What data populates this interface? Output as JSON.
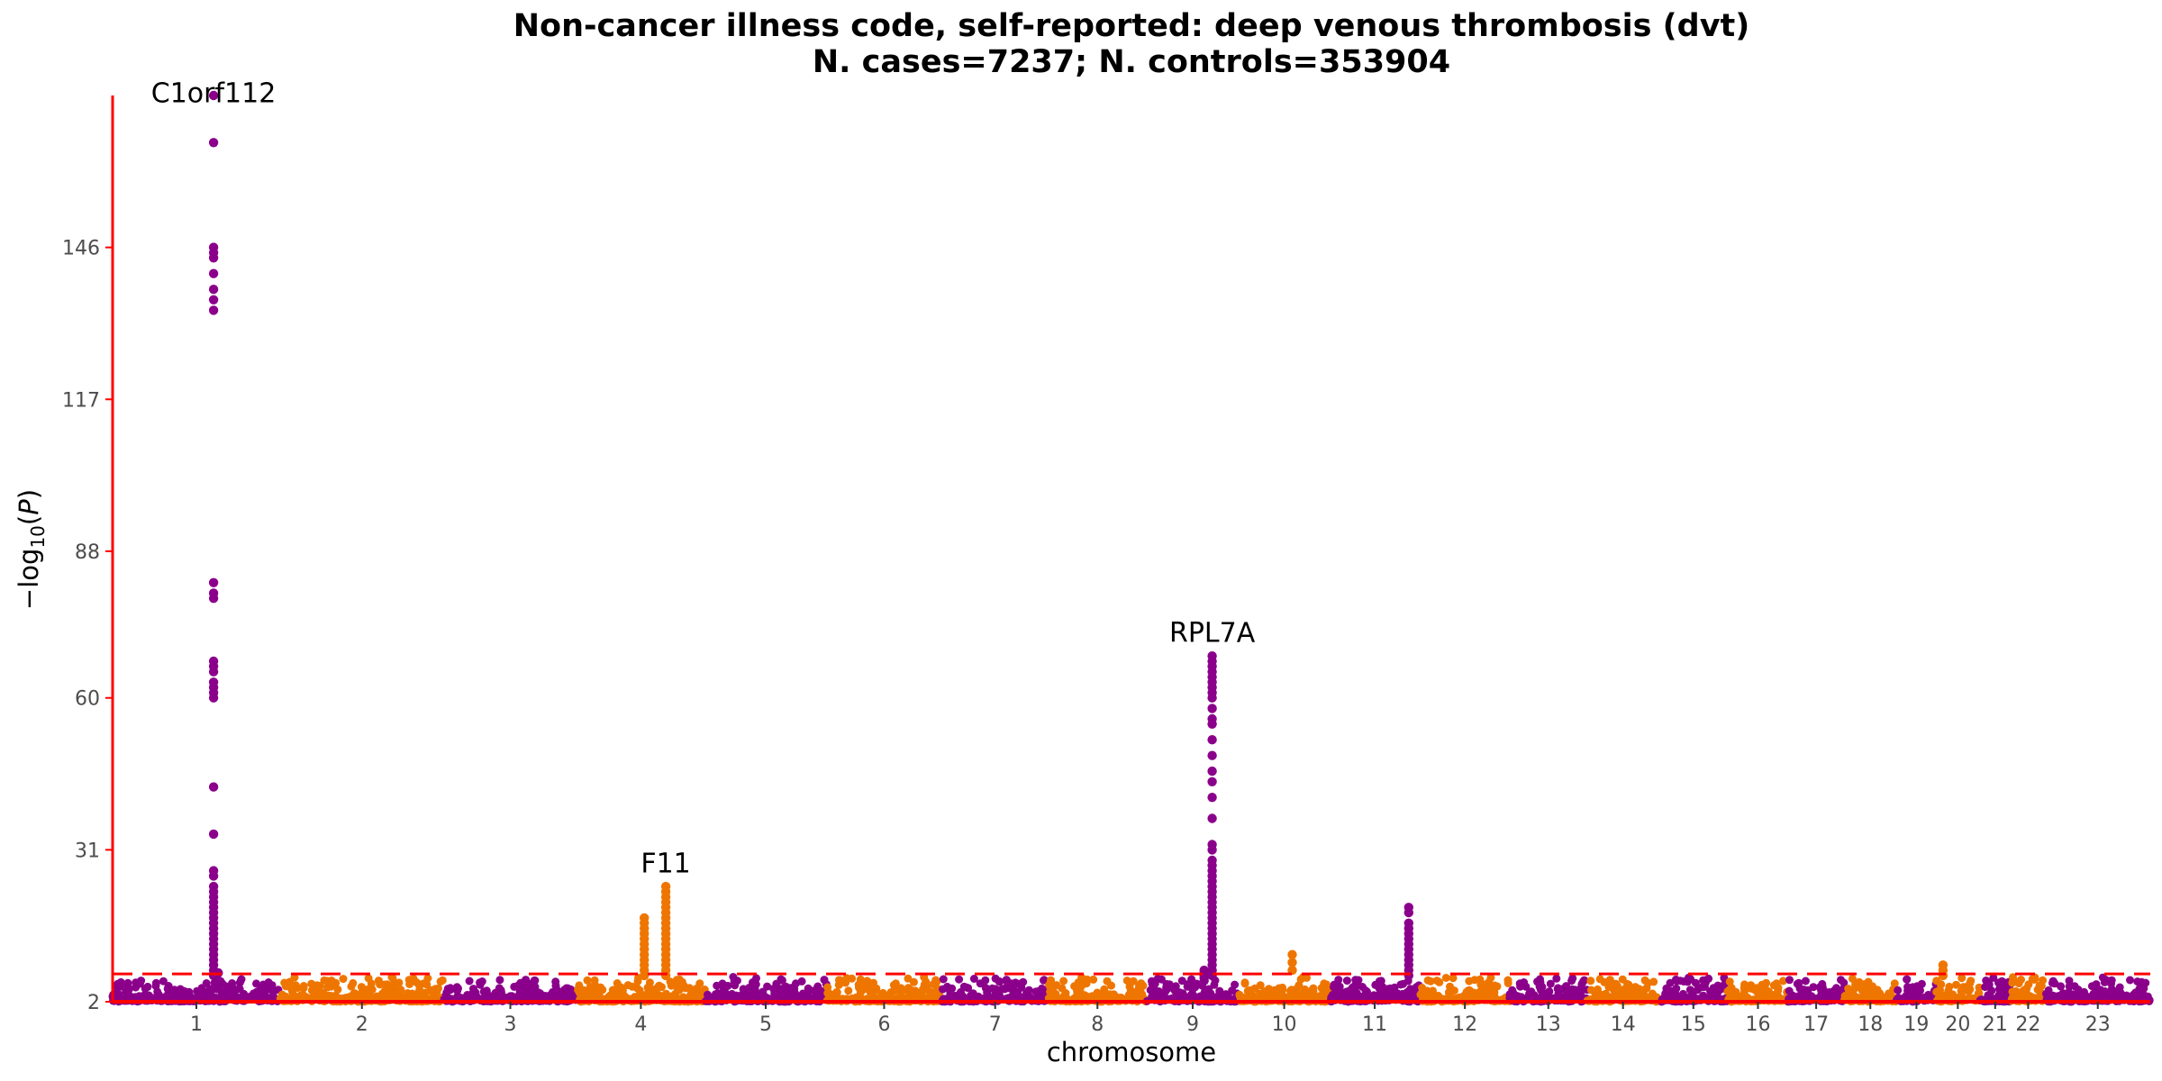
{
  "chart_data": {
    "type": "scatter",
    "subtype": "manhattan",
    "title": "Non-cancer illness code, self-reported: deep venous thrombosis (dvt)",
    "subtitle": "N. cases=7237; N. controls=353904",
    "xlabel": "chromosome",
    "ylabel": "−log10(P)",
    "ylim": [
      2,
      175
    ],
    "yticks": [
      2,
      31,
      60,
      88,
      117,
      146
    ],
    "grid": false,
    "legend": "none",
    "colors": {
      "odd": "#8b008b",
      "even": "#ee7600",
      "axis": "#ff0000",
      "threshold": "#ff0000"
    },
    "threshold": 7.3,
    "chromosomes": [
      {
        "label": "1",
        "start": 0,
        "end": 249
      },
      {
        "label": "2",
        "start": 249,
        "end": 492
      },
      {
        "label": "3",
        "start": 492,
        "end": 690
      },
      {
        "label": "4",
        "start": 690,
        "end": 880
      },
      {
        "label": "5",
        "start": 880,
        "end": 1061
      },
      {
        "label": "6",
        "start": 1061,
        "end": 1232
      },
      {
        "label": "7",
        "start": 1232,
        "end": 1391
      },
      {
        "label": "8",
        "start": 1391,
        "end": 1536
      },
      {
        "label": "9",
        "start": 1536,
        "end": 1674
      },
      {
        "label": "10",
        "start": 1674,
        "end": 1808
      },
      {
        "label": "11",
        "start": 1808,
        "end": 1943
      },
      {
        "label": "12",
        "start": 1943,
        "end": 2076
      },
      {
        "label": "13",
        "start": 2076,
        "end": 2191
      },
      {
        "label": "14",
        "start": 2191,
        "end": 2298
      },
      {
        "label": "15",
        "start": 2298,
        "end": 2400
      },
      {
        "label": "16",
        "start": 2400,
        "end": 2490
      },
      {
        "label": "17",
        "start": 2490,
        "end": 2573
      },
      {
        "label": "18",
        "start": 2573,
        "end": 2651
      },
      {
        "label": "19",
        "start": 2651,
        "end": 2710
      },
      {
        "label": "20",
        "start": 2710,
        "end": 2774
      },
      {
        "label": "21",
        "start": 2774,
        "end": 2821
      },
      {
        "label": "22",
        "start": 2821,
        "end": 2872
      },
      {
        "label": "23",
        "start": 2872,
        "end": 3028
      }
    ],
    "peaks": [
      {
        "x": 150,
        "y": [
          175,
          166,
          146,
          145,
          144,
          141,
          138,
          136,
          134,
          82,
          80,
          79,
          67,
          66,
          65,
          63,
          62,
          61,
          60,
          43,
          34,
          27,
          26,
          24,
          23,
          22,
          21,
          20,
          19,
          18,
          17,
          16,
          15,
          14,
          13,
          12,
          11,
          10,
          9,
          8,
          7
        ]
      },
      {
        "x": 157,
        "y": [
          7.5,
          6
        ]
      },
      {
        "x": 790,
        "y": [
          18,
          17,
          16,
          15,
          14,
          13,
          12,
          11,
          10,
          9,
          8,
          7
        ]
      },
      {
        "x": 822,
        "y": [
          24,
          23,
          22,
          21,
          20,
          19,
          18,
          17,
          16,
          15,
          14,
          13,
          12,
          11,
          10,
          9,
          8,
          7
        ]
      },
      {
        "x": 1622,
        "y": [
          8,
          7.5,
          7,
          6.5,
          6
        ]
      },
      {
        "x": 1634,
        "y": [
          68,
          67,
          66,
          65,
          64,
          63,
          62,
          61,
          60,
          58,
          56,
          55,
          52,
          49,
          46,
          44,
          41,
          37,
          32,
          31,
          29,
          28,
          27,
          26,
          25,
          24,
          23,
          22,
          21,
          20,
          19,
          18,
          17,
          16,
          15,
          14,
          13,
          12,
          11,
          10,
          9,
          8,
          7
        ]
      },
      {
        "x": 1753,
        "y": [
          11,
          9.5,
          8
        ]
      },
      {
        "x": 1926,
        "y": [
          20,
          19,
          17,
          16,
          15,
          14,
          13,
          12,
          11,
          10,
          9,
          8,
          7
        ]
      },
      {
        "x": 2720,
        "y": [
          9,
          8,
          7
        ]
      }
    ],
    "annotations": [
      {
        "label": "C1orf112",
        "x": 150,
        "y": 173
      },
      {
        "label": "F11",
        "x": 822,
        "y": 26
      },
      {
        "label": "RPL7A",
        "x": 1634,
        "y": 70
      }
    ]
  }
}
